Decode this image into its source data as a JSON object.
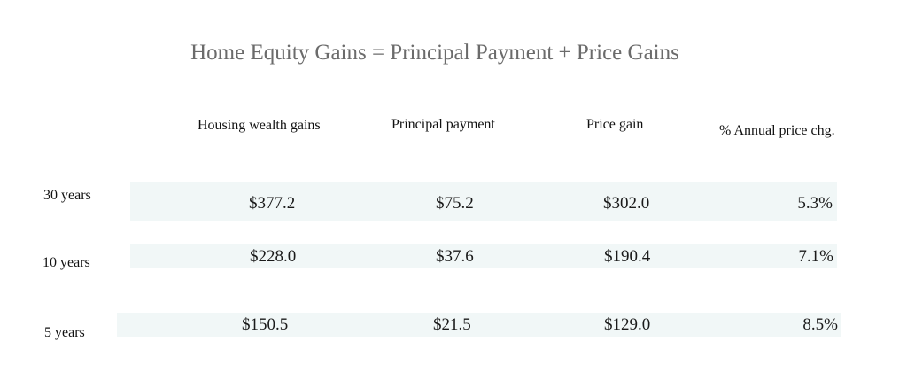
{
  "title": "Home Equity Gains = Principal Payment + Price Gains",
  "columns": [
    "Housing wealth gains",
    "Principal payment",
    "Price gain",
    "% Annual price chg."
  ],
  "rows": [
    {
      "label": "30 years",
      "values": [
        "$377.2",
        "$75.2",
        "$302.0",
        "5.3%"
      ]
    },
    {
      "label": "10 years",
      "values": [
        "$228.0",
        "$37.6",
        "$190.4",
        "7.1%"
      ]
    },
    {
      "label": "5 years",
      "values": [
        "$150.5",
        "$21.5",
        "$129.0",
        "8.5%"
      ]
    }
  ],
  "colors": {
    "band": "#f1f7f7",
    "title": "#6b6b6b"
  }
}
